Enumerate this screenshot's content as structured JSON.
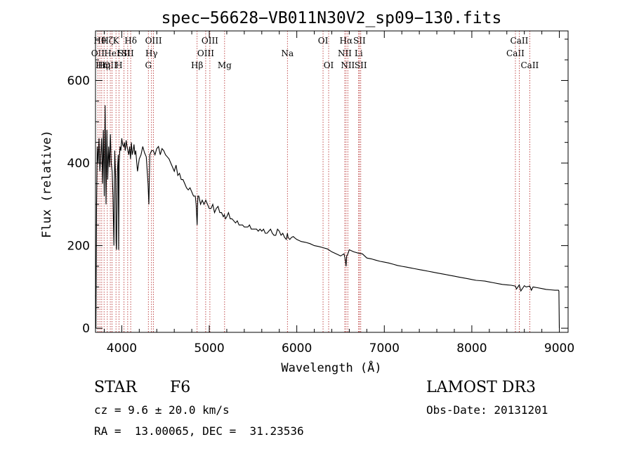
{
  "chart_data": {
    "type": "line",
    "title": "spec−56628−VB011N30V2_sp09−130.fits",
    "xlabel": "Wavelength (Å)",
    "ylabel": "Flux (relative)",
    "xlim": [
      3700,
      9100
    ],
    "ylim": [
      -10,
      720
    ],
    "xticks": [
      4000,
      5000,
      6000,
      7000,
      8000,
      9000
    ],
    "yticks": [
      0,
      200,
      400,
      600
    ],
    "series": [
      {
        "name": "spectrum",
        "x": [
          3700,
          3705,
          3712,
          3720,
          3730,
          3740,
          3750,
          3760,
          3770,
          3780,
          3790,
          3800,
          3810,
          3820,
          3830,
          3840,
          3850,
          3860,
          3870,
          3880,
          3890,
          3900,
          3910,
          3920,
          3930,
          3935,
          3940,
          3950,
          3960,
          3965,
          3970,
          3980,
          3990,
          4000,
          4010,
          4020,
          4030,
          4040,
          4050,
          4060,
          4070,
          4080,
          4090,
          4100,
          4110,
          4120,
          4130,
          4140,
          4150,
          4160,
          4180,
          4200,
          4220,
          4240,
          4260,
          4280,
          4300,
          4310,
          4320,
          4340,
          4360,
          4380,
          4400,
          4420,
          4440,
          4460,
          4480,
          4500,
          4520,
          4540,
          4560,
          4580,
          4600,
          4620,
          4640,
          4660,
          4680,
          4700,
          4720,
          4740,
          4760,
          4780,
          4800,
          4820,
          4840,
          4850,
          4861,
          4870,
          4880,
          4900,
          4920,
          4940,
          4960,
          4980,
          5000,
          5020,
          5040,
          5060,
          5080,
          5100,
          5120,
          5140,
          5160,
          5172,
          5185,
          5200,
          5220,
          5240,
          5260,
          5280,
          5300,
          5320,
          5340,
          5360,
          5380,
          5400,
          5420,
          5440,
          5460,
          5480,
          5500,
          5520,
          5540,
          5560,
          5580,
          5600,
          5620,
          5640,
          5660,
          5680,
          5700,
          5720,
          5740,
          5760,
          5780,
          5800,
          5820,
          5840,
          5860,
          5880,
          5893,
          5900,
          5920,
          5940,
          5960,
          5980,
          6000,
          6050,
          6100,
          6150,
          6200,
          6250,
          6300,
          6350,
          6400,
          6450,
          6500,
          6540,
          6555,
          6563,
          6570,
          6580,
          6600,
          6650,
          6700,
          6750,
          6800,
          6850,
          6900,
          6950,
          7000,
          7050,
          7100,
          7150,
          7200,
          7250,
          7300,
          7350,
          7400,
          7450,
          7500,
          7550,
          7600,
          7650,
          7700,
          7750,
          7800,
          7850,
          7900,
          7950,
          8000,
          8050,
          8100,
          8150,
          8200,
          8250,
          8300,
          8350,
          8400,
          8450,
          8498,
          8510,
          8542,
          8560,
          8600,
          8620,
          8662,
          8680,
          8700,
          8750,
          8800,
          8850,
          8900,
          8950,
          8990,
          8995,
          9000
        ],
        "values": [
          80,
          0,
          300,
          440,
          400,
          460,
          380,
          420,
          460,
          350,
          480,
          320,
          540,
          300,
          480,
          360,
          440,
          390,
          470,
          400,
          380,
          320,
          200,
          430,
          360,
          210,
          190,
          380,
          420,
          190,
          400,
          440,
          430,
          460,
          445,
          440,
          450,
          430,
          455,
          440,
          430,
          420,
          440,
          410,
          450,
          420,
          430,
          445,
          420,
          430,
          380,
          410,
          420,
          440,
          425,
          415,
          350,
          300,
          420,
          430,
          430,
          420,
          435,
          440,
          420,
          435,
          430,
          420,
          415,
          410,
          400,
          390,
          380,
          395,
          370,
          375,
          360,
          360,
          350,
          340,
          335,
          340,
          330,
          320,
          320,
          300,
          250,
          320,
          320,
          300,
          310,
          300,
          310,
          300,
          290,
          290,
          300,
          280,
          290,
          295,
          280,
          280,
          270,
          275,
          265,
          270,
          280,
          265,
          265,
          260,
          255,
          260,
          250,
          250,
          250,
          245,
          245,
          245,
          250,
          240,
          240,
          240,
          240,
          235,
          240,
          235,
          240,
          230,
          230,
          235,
          240,
          230,
          225,
          225,
          240,
          235,
          225,
          230,
          220,
          215,
          230,
          220,
          215,
          220,
          222,
          218,
          215,
          210,
          208,
          205,
          200,
          198,
          195,
          192,
          185,
          180,
          175,
          180,
          165,
          150,
          175,
          178,
          190,
          185,
          182,
          180,
          170,
          168,
          165,
          162,
          160,
          158,
          155,
          152,
          150,
          148,
          146,
          144,
          142,
          140,
          138,
          136,
          134,
          132,
          130,
          128,
          126,
          124,
          122,
          120,
          118,
          116,
          115,
          114,
          112,
          110,
          108,
          106,
          105,
          104,
          102,
          95,
          105,
          90,
          103,
          100,
          102,
          92,
          100,
          98,
          96,
          94,
          93,
          92,
          92,
          90,
          0
        ]
      }
    ],
    "line_ids": [
      {
        "wl": 3727,
        "label": "OII",
        "row": 2
      },
      {
        "wl": 3750,
        "label": "Hθ",
        "row": 1
      },
      {
        "wl": 3771,
        "label": "Hη",
        "row": 3
      },
      {
        "wl": 3798,
        "label": "Hη",
        "row": 3
      },
      {
        "wl": 3835,
        "label": "Hζ",
        "row": 1
      },
      {
        "wl": 3869,
        "label": "OII",
        "row": 3
      },
      {
        "wl": 3889,
        "label": "HeI",
        "row": 2
      },
      {
        "wl": 3934,
        "label": "K",
        "row": 1
      },
      {
        "wl": 3968,
        "label": "H",
        "row": 3
      },
      {
        "wl": 4026,
        "label": "SII",
        "row": 2
      },
      {
        "wl": 4102,
        "label": "Hδ",
        "row": 1
      },
      {
        "wl": 4068,
        "label": "SII",
        "row": 2
      },
      {
        "wl": 4304,
        "label": "G",
        "row": 3
      },
      {
        "wl": 4340,
        "label": "Hγ",
        "row": 2
      },
      {
        "wl": 4363,
        "label": "OIII",
        "row": 1
      },
      {
        "wl": 4861,
        "label": "Hβ",
        "row": 3
      },
      {
        "wl": 4959,
        "label": "OIII",
        "row": 2
      },
      {
        "wl": 5007,
        "label": "OIII",
        "row": 1
      },
      {
        "wl": 5175,
        "label": "Mg",
        "row": 3
      },
      {
        "wl": 5893,
        "label": "Na",
        "row": 2
      },
      {
        "wl": 6300,
        "label": "OI",
        "row": 1
      },
      {
        "wl": 6364,
        "label": "OI",
        "row": 3
      },
      {
        "wl": 6548,
        "label": "NII",
        "row": 2
      },
      {
        "wl": 6563,
        "label": "Hα",
        "row": 1
      },
      {
        "wl": 6583,
        "label": "NII",
        "row": 3
      },
      {
        "wl": 6707,
        "label": "Li",
        "row": 2
      },
      {
        "wl": 6716,
        "label": "SII",
        "row": 1
      },
      {
        "wl": 6731,
        "label": "SII",
        "row": 3
      },
      {
        "wl": 8498,
        "label": "CaII",
        "row": 2
      },
      {
        "wl": 8542,
        "label": "CaII",
        "row": 1
      },
      {
        "wl": 8662,
        "label": "CaII",
        "row": 3
      }
    ]
  },
  "info": {
    "class": "STAR",
    "subclass": "F6",
    "survey": "LAMOST DR3",
    "cz": "cz = 9.6 ± 20.0 km/s",
    "obs_date": "Obs-Date: 20131201",
    "coords": "RA =  13.00065, DEC =  31.23536"
  },
  "colors": {
    "line_marker": "#b22222",
    "spectrum": "#000000"
  }
}
